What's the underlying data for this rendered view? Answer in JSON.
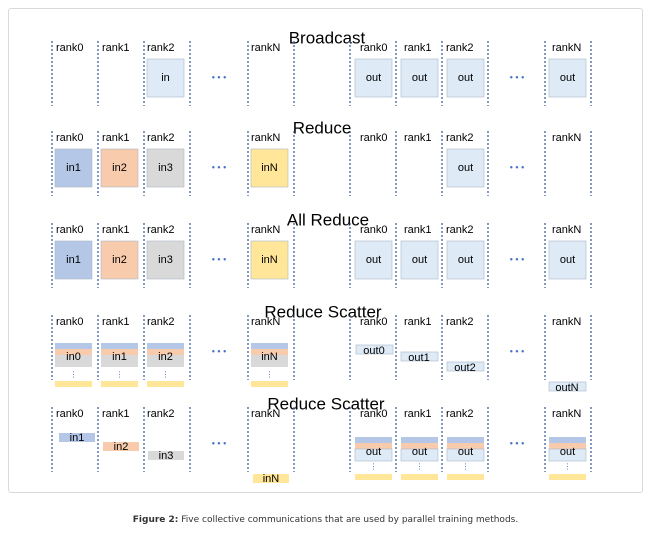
{
  "caption": {
    "label": "Figure 2:",
    "text": "Five collective communications that are used by parallel training methods."
  },
  "colors": {
    "blue_cell": "#b4c7e7",
    "orange_cell": "#f8cbad",
    "gray_cell": "#d9d9d9",
    "yellow_cell": "#ffe699",
    "light_blue_cell": "#deebf7",
    "divider_blue": "#2f5597",
    "dots": "#4472c4"
  },
  "rank_labels": [
    "rank0",
    "rank1",
    "rank2",
    "rankN"
  ],
  "ellipsis": "• • •",
  "sections": [
    {
      "title": "Broadcast",
      "input_cells": [
        "",
        "",
        "in",
        "",
        ""
      ],
      "output_cells": [
        "out",
        "out",
        "out",
        "",
        "out"
      ]
    },
    {
      "title": "Reduce",
      "input_cells": [
        "in1",
        "in2",
        "in3",
        "",
        "inN"
      ],
      "output_cells": [
        "",
        "",
        "out",
        "",
        ""
      ]
    },
    {
      "title": "All Reduce",
      "input_cells": [
        "in1",
        "in2",
        "in3",
        "",
        "inN"
      ],
      "output_cells": [
        "out",
        "out",
        "out",
        "",
        "out"
      ]
    },
    {
      "title": "Reduce Scatter",
      "input_labels": [
        "in0",
        "in1",
        "in2",
        "inN"
      ],
      "output_labels": [
        "out0",
        "out1",
        "out2",
        "outN"
      ]
    },
    {
      "title": "Reduce Scatter",
      "input_labels": [
        "in1",
        "in2",
        "in3",
        "inN"
      ],
      "output_labels": [
        "out",
        "out",
        "out",
        "out"
      ]
    }
  ]
}
